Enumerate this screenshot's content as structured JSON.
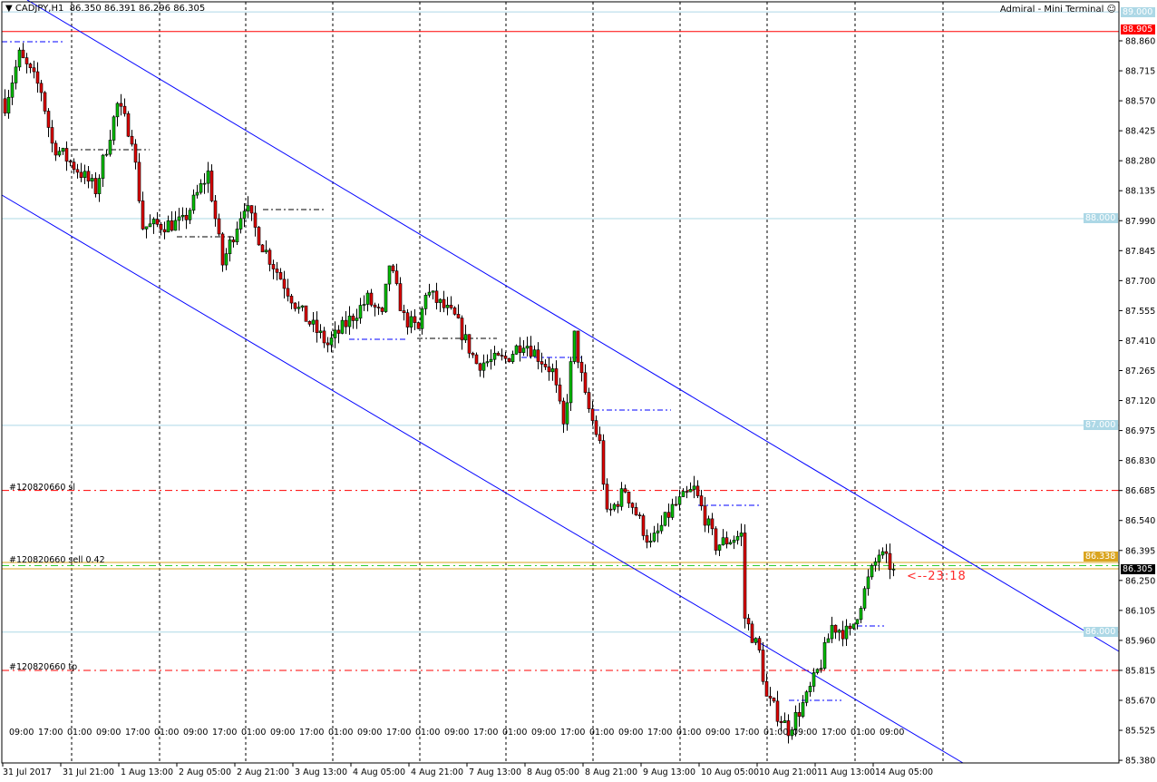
{
  "header": {
    "symbol": "CADJPY,H1",
    "ohlc": "86.350 86.391 86.296 86.305",
    "menu_icon": "triangle-down-icon"
  },
  "brand": {
    "label": "Admiral - Mini Terminal",
    "icon": "smiley-icon"
  },
  "colors": {
    "bull": "#00c000",
    "bear": "#e00000",
    "channel": "#0000ff",
    "level": "#add8e6",
    "sl_tp": "#ff0000",
    "order": "#daa520",
    "sell": "#32cd32"
  },
  "orders": {
    "sl_label": "#120820660 sl",
    "sell_label": "#120820660 sell 0.42",
    "tp_label": "#120820660 tp",
    "sl_price": 86.685,
    "tp_price": 85.815,
    "sell_price": 86.305
  },
  "countdown": "<--23:18",
  "price_labels": {
    "top_level": "89.000",
    "red_level": "88.905",
    "level_88": "88.000",
    "level_87": "87.000",
    "level_86": "86.000",
    "ask": "86.338",
    "bid": "86.305"
  },
  "chart_data": {
    "type": "candlestick",
    "title": "CADJPY,H1",
    "ylim": [
      85.38,
      89.0
    ],
    "y_ticks": [
      "88.860",
      "88.715",
      "88.570",
      "88.425",
      "88.280",
      "88.135",
      "87.990",
      "87.845",
      "87.700",
      "87.555",
      "87.410",
      "87.265",
      "87.120",
      "86.975",
      "86.830",
      "86.685",
      "86.540",
      "86.395",
      "86.250",
      "86.105",
      "85.960",
      "85.815",
      "85.670",
      "85.525",
      "85.380"
    ],
    "x_ticks": [
      "31 Jul 2017",
      "31 Jul 21:00",
      "1 Aug 13:00",
      "2 Aug 05:00",
      "2 Aug 21:00",
      "3 Aug 13:00",
      "4 Aug 05:00",
      "4 Aug 21:00",
      "7 Aug 13:00",
      "8 Aug 05:00",
      "8 Aug 21:00",
      "9 Aug 13:00",
      "10 Aug 05:00",
      "10 Aug 21:00",
      "11 Aug 13:00",
      "14 Aug 05:00"
    ],
    "hour_ticks": [
      "09:00",
      "17:00",
      "01:00"
    ],
    "horizontal_levels": [
      89.0,
      88.905,
      88.0,
      87.0,
      86.0
    ],
    "close_waypoints": [
      {
        "bar": 0,
        "price": 88.55
      },
      {
        "bar": 4,
        "price": 88.79
      },
      {
        "bar": 10,
        "price": 88.62
      },
      {
        "bar": 13,
        "price": 88.36
      },
      {
        "bar": 21,
        "price": 88.22
      },
      {
        "bar": 25,
        "price": 88.14
      },
      {
        "bar": 31,
        "price": 88.55
      },
      {
        "bar": 35,
        "price": 88.4
      },
      {
        "bar": 38,
        "price": 87.96
      },
      {
        "bar": 49,
        "price": 87.98
      },
      {
        "bar": 56,
        "price": 88.22
      },
      {
        "bar": 60,
        "price": 87.78
      },
      {
        "bar": 66,
        "price": 88.07
      },
      {
        "bar": 71,
        "price": 87.87
      },
      {
        "bar": 81,
        "price": 87.56
      },
      {
        "bar": 89,
        "price": 87.39
      },
      {
        "bar": 100,
        "price": 87.61
      },
      {
        "bar": 104,
        "price": 87.52
      },
      {
        "bar": 106,
        "price": 87.78
      },
      {
        "bar": 110,
        "price": 87.52
      },
      {
        "bar": 114,
        "price": 87.46
      },
      {
        "bar": 116,
        "price": 87.65
      },
      {
        "bar": 124,
        "price": 87.52
      },
      {
        "bar": 130,
        "price": 87.3
      },
      {
        "bar": 138,
        "price": 87.32
      },
      {
        "bar": 143,
        "price": 87.41
      },
      {
        "bar": 151,
        "price": 87.26
      },
      {
        "bar": 154,
        "price": 86.99
      },
      {
        "bar": 157,
        "price": 87.43
      },
      {
        "bar": 160,
        "price": 87.13
      },
      {
        "bar": 164,
        "price": 86.91
      },
      {
        "bar": 166,
        "price": 86.56
      },
      {
        "bar": 171,
        "price": 86.69
      },
      {
        "bar": 178,
        "price": 86.42
      },
      {
        "bar": 184,
        "price": 86.6
      },
      {
        "bar": 190,
        "price": 86.69
      },
      {
        "bar": 196,
        "price": 86.42
      },
      {
        "bar": 203,
        "price": 86.47
      },
      {
        "bar": 204,
        "price": 86.07
      },
      {
        "bar": 208,
        "price": 85.9
      },
      {
        "bar": 210,
        "price": 85.68
      },
      {
        "bar": 216,
        "price": 85.53
      },
      {
        "bar": 221,
        "price": 85.68
      },
      {
        "bar": 225,
        "price": 85.85
      },
      {
        "bar": 228,
        "price": 86.03
      },
      {
        "bar": 233,
        "price": 85.99
      },
      {
        "bar": 238,
        "price": 86.25
      },
      {
        "bar": 241,
        "price": 86.38
      },
      {
        "bar": 245,
        "price": 86.305
      }
    ]
  }
}
